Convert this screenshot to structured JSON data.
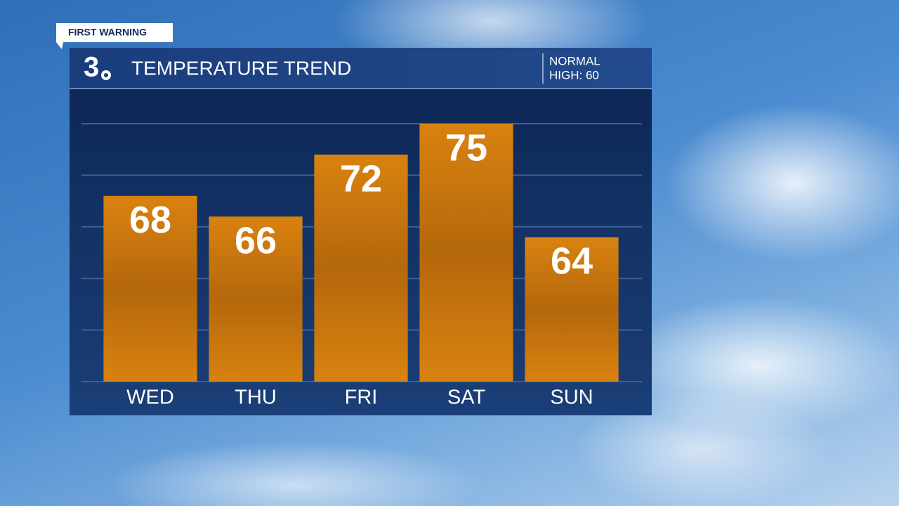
{
  "chart_data": {
    "type": "bar",
    "badge": "FIRST WARNING",
    "logo": "3",
    "title": "TEMPERATURE TREND",
    "annotation": [
      "NORMAL",
      "HIGH: 60"
    ],
    "categories": [
      "WED",
      "THU",
      "FRI",
      "SAT",
      "SUN"
    ],
    "values": [
      68,
      66,
      72,
      75,
      64
    ],
    "color": "#d47e0c",
    "ylim": [
      50,
      75
    ],
    "yticks": [
      50,
      55,
      60,
      65,
      70,
      75
    ],
    "grid": true
  }
}
